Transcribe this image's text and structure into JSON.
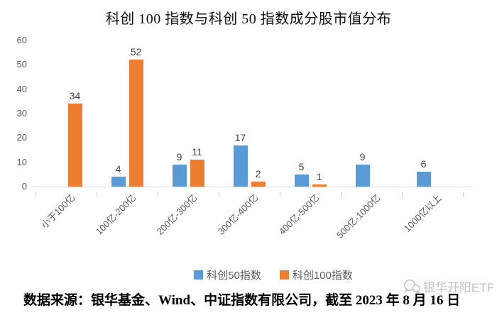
{
  "chart": {
    "title": "科创 100 指数与科创 50 指数成分股市值分布"
  },
  "chart_data": {
    "type": "bar",
    "title": "科创 100 指数与科创 50 指数成分股市值分布",
    "categories": [
      "小于100亿",
      "100亿-200亿",
      "200亿-300亿",
      "300亿-400亿",
      "400亿-500亿",
      "500亿-1000亿",
      "1000亿以上"
    ],
    "series": [
      {
        "name": "科创50指数",
        "color": "#5B9BD5",
        "values": [
          0,
          4,
          9,
          17,
          5,
          9,
          6
        ]
      },
      {
        "name": "科创100指数",
        "color": "#ED7D31",
        "values": [
          34,
          52,
          11,
          2,
          1,
          0,
          0
        ]
      }
    ],
    "xlabel": "",
    "ylabel": "",
    "ylim": [
      0,
      60
    ],
    "yticks": [
      0,
      10,
      20,
      30,
      40,
      50,
      60
    ],
    "grid": false,
    "legend_position": "bottom",
    "data_labels": "values shown above non-zero bars only",
    "axis_line_color": "#D9D9D9",
    "tick_label_color": "#595959",
    "data_label_color": "#404040"
  },
  "legend": {
    "items": [
      {
        "label": "科创50指数",
        "color": "#5B9BD5"
      },
      {
        "label": "科创100指数",
        "color": "#ED7D31"
      }
    ]
  },
  "footer": {
    "source_text": "数据来源：银华基金、Wind、中证指数有限公司，截至 2023 年 8 月 16 日"
  },
  "watermark": {
    "label": "银华开阳ETF",
    "icon": "wechat-logo",
    "color": "#c2c2c2"
  }
}
